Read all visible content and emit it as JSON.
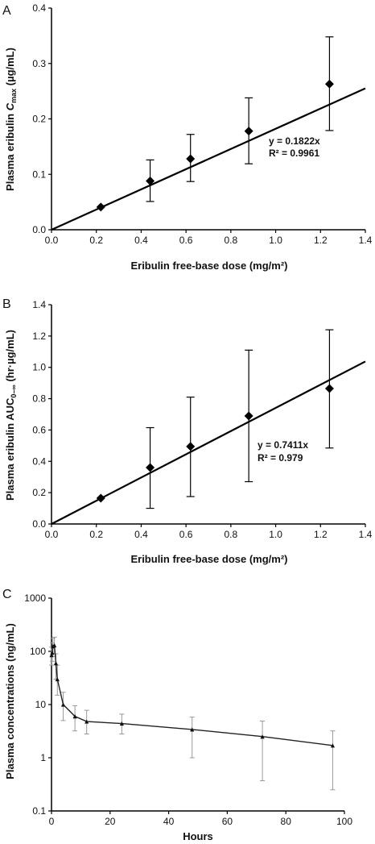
{
  "chart_data": [
    {
      "panel_label": "A",
      "type": "scatter",
      "xlabel": "Eribulin free-base dose (mg/m²)",
      "ylabel_pre": "Plasma eribulin ",
      "ylabel_var": "C",
      "ylabel_sub": "max",
      "ylabel_post": " (µg/mL)",
      "xlim": [
        0,
        1.4
      ],
      "ylim": [
        0,
        0.4
      ],
      "xticks": [
        "0.0",
        "0.2",
        "0.4",
        "0.6",
        "0.8",
        "1.0",
        "1.2",
        "1.4"
      ],
      "yticks": [
        "0.0",
        "0.1",
        "0.2",
        "0.3",
        "0.4"
      ],
      "x": [
        0.22,
        0.44,
        0.62,
        0.88,
        1.24
      ],
      "y": [
        0.041,
        0.088,
        0.128,
        0.178,
        0.263
      ],
      "err_low": [
        0.041,
        0.051,
        0.087,
        0.119,
        0.179
      ],
      "err_high": [
        0.041,
        0.126,
        0.172,
        0.238,
        0.348
      ],
      "fit_slope": 0.1822,
      "equation": "y = 0.1822x",
      "r2": "R² = 0.9961"
    },
    {
      "panel_label": "B",
      "type": "scatter",
      "xlabel": "Eribulin free-base dose (mg/m²)",
      "ylabel_pre": "Plasma eribulin AUC",
      "ylabel_sub": "0–∞",
      "ylabel_post": " (hr·µg/mL)",
      "xlim": [
        0,
        1.4
      ],
      "ylim": [
        0,
        1.4
      ],
      "xticks": [
        "0.0",
        "0.2",
        "0.4",
        "0.6",
        "0.8",
        "1.0",
        "1.2",
        "1.4"
      ],
      "yticks": [
        "0.0",
        "0.2",
        "0.4",
        "0.6",
        "0.8",
        "1.0",
        "1.2",
        "1.4"
      ],
      "x": [
        0.22,
        0.44,
        0.62,
        0.88,
        1.24
      ],
      "y": [
        0.165,
        0.36,
        0.495,
        0.69,
        0.865
      ],
      "err_low": [
        0.165,
        0.1,
        0.175,
        0.27,
        0.485
      ],
      "err_high": [
        0.165,
        0.615,
        0.81,
        1.11,
        1.24
      ],
      "fit_slope": 0.7411,
      "equation": "y = 0.7411x",
      "r2": "R² = 0.979"
    },
    {
      "panel_label": "C",
      "type": "line",
      "xlabel": "Hours",
      "ylabel": "Plasma concentrations (ng/mL)",
      "xlim": [
        0,
        100
      ],
      "ylim": [
        0.1,
        1000
      ],
      "yscale": "log",
      "xticks": [
        "0",
        "20",
        "40",
        "60",
        "80",
        "100"
      ],
      "yticks": [
        "0.1",
        "1",
        "10",
        "100",
        "1000"
      ],
      "x": [
        0,
        0.25,
        0.5,
        1,
        1.5,
        2,
        4,
        8,
        12,
        24,
        48,
        72,
        96
      ],
      "y": [
        85,
        95,
        125,
        130,
        60,
        30,
        10,
        6,
        4.8,
        4.4,
        3.4,
        2.5,
        1.7
      ],
      "err_low": [
        55,
        65,
        80,
        90,
        30,
        15,
        5,
        3.2,
        2.8,
        2.8,
        1.0,
        0.37,
        0.25
      ],
      "err_high": [
        120,
        145,
        175,
        185,
        90,
        55,
        17,
        9.5,
        7.8,
        6.6,
        5.8,
        4.9,
        3.2
      ]
    }
  ]
}
